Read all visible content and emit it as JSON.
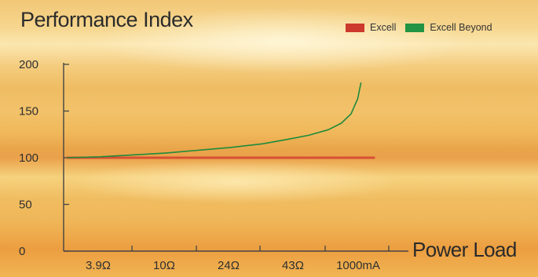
{
  "chart_data": {
    "type": "line",
    "title": "Performance Index",
    "xlabel": "Power Load",
    "ylabel": "",
    "categories": [
      "3.9Ω",
      "10Ω",
      "24Ω",
      "43Ω",
      "1000mA"
    ],
    "ylim": [
      0,
      200
    ],
    "yticks": [
      0,
      50,
      100,
      150,
      200
    ],
    "grid": false,
    "legend_position": "top-right",
    "series": [
      {
        "name": "Excell",
        "color": "#d0342c",
        "x": [
          0,
          4.7
        ],
        "y": [
          100,
          100
        ]
      },
      {
        "name": "Excell Beyond",
        "color": "#1f8a3b",
        "x": [
          0,
          0.5,
          1,
          1.5,
          2,
          2.5,
          3,
          3.4,
          3.7,
          4.0,
          4.2,
          4.35,
          4.45,
          4.5
        ],
        "y": [
          100,
          101,
          103,
          105,
          108,
          111,
          115,
          120,
          124,
          130,
          137,
          147,
          163,
          180
        ]
      }
    ],
    "legend": [
      {
        "label": "Excell",
        "color": "#d0342c"
      },
      {
        "label": "Excell Beyond",
        "color": "#1f8a3b"
      }
    ]
  }
}
